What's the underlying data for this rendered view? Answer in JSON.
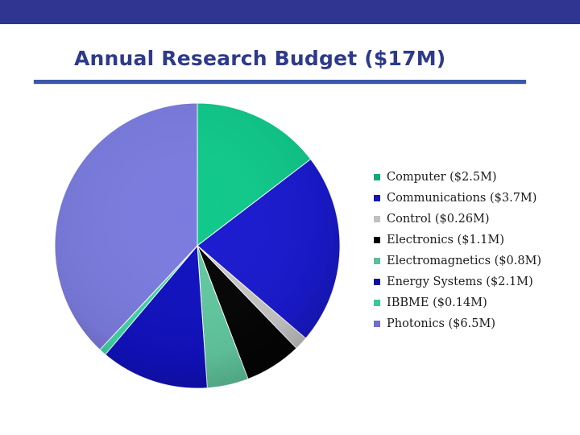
{
  "chart_data": {
    "type": "pie",
    "title": "Annual Research Budget ($17M)",
    "slices": [
      {
        "label": "Computer ($2.5M)",
        "value": 2.5,
        "color": "#10c98a",
        "swatch": "#10a878"
      },
      {
        "label": "Communications ($3.7M)",
        "value": 3.7,
        "color": "#1a1ad0",
        "swatch": "#1414b8"
      },
      {
        "label": "Control ($0.26M)",
        "value": 0.26,
        "color": "#c8c8c8",
        "swatch": "#c0c0c0"
      },
      {
        "label": "Electronics ($1.1M)",
        "value": 1.1,
        "color": "#050505",
        "swatch": "#000000"
      },
      {
        "label": "Electromagnetics ($0.8M)",
        "value": 0.8,
        "color": "#62c9a0",
        "swatch": "#5bbf98"
      },
      {
        "label": "Energy Systems ($2.1M)",
        "value": 2.1,
        "color": "#1111c0",
        "swatch": "#0d0da8"
      },
      {
        "label": "IBBME ($0.14M)",
        "value": 0.14,
        "color": "#3fd6a8",
        "swatch": "#37c89c"
      },
      {
        "label": "Photonics ($6.5M)",
        "value": 6.5,
        "color": "#7b7bdf",
        "swatch": "#6f6fd0"
      }
    ]
  }
}
